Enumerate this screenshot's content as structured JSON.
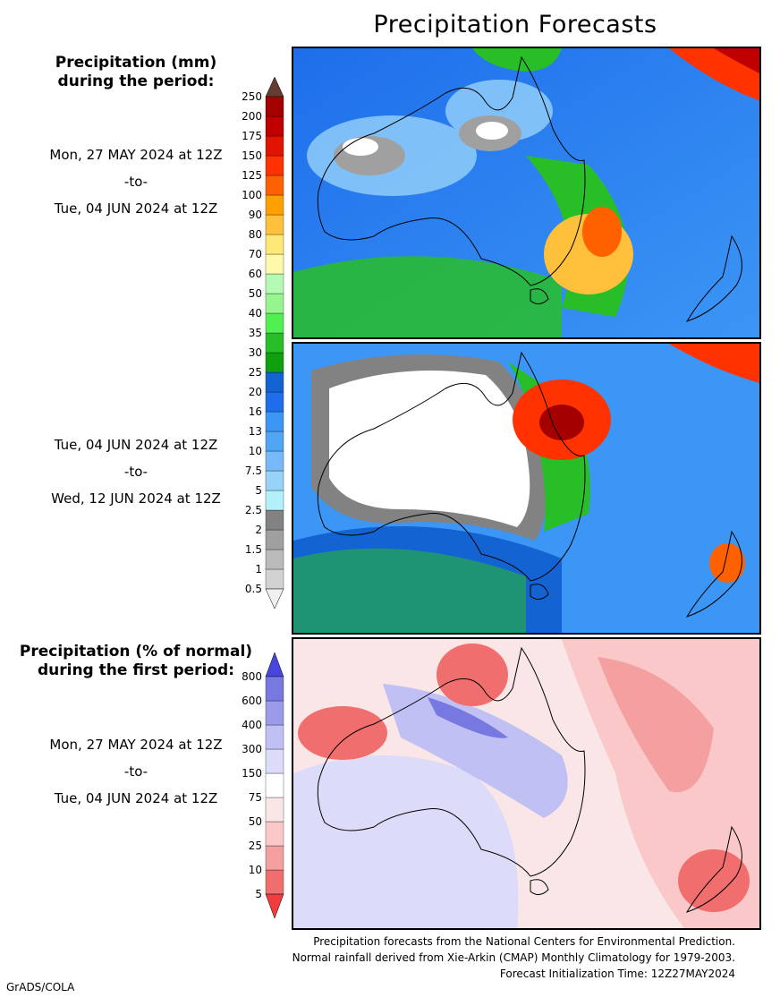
{
  "title": "Precipitation Forecasts",
  "legend_mm": {
    "heading_line1": "Precipitation (mm)",
    "heading_line2": "during the period:",
    "levels": [
      "0.5",
      "1",
      "1.5",
      "2",
      "2.5",
      "5",
      "7.5",
      "10",
      "13",
      "16",
      "20",
      "25",
      "30",
      "35",
      "40",
      "50",
      "60",
      "70",
      "80",
      "90",
      "100",
      "125",
      "150",
      "175",
      "200",
      "250"
    ],
    "colors": [
      "#f0f0f0",
      "#d2d2d2",
      "#bababa",
      "#a0a0a0",
      "#828282",
      "#b4f0fa",
      "#96d2fa",
      "#78b9fa",
      "#50a5f5",
      "#3c96f5",
      "#1e6eeb",
      "#1463d2",
      "#0fa00f",
      "#28be28",
      "#50f050",
      "#96f58c",
      "#b4fab4",
      "#fffaaa",
      "#ffe878",
      "#ffc03c",
      "#ffa000",
      "#ff6000",
      "#ff3200",
      "#e11400",
      "#c00000",
      "#a50000",
      "#643c32"
    ]
  },
  "period1": {
    "start": "Mon, 27 MAY 2024 at 12Z",
    "sep": "-to-",
    "end": "Tue, 04 JUN 2024 at 12Z"
  },
  "period2": {
    "start": "Tue, 04 JUN 2024 at 12Z",
    "sep": "-to-",
    "end": "Wed, 12 JUN 2024 at 12Z"
  },
  "legend_pct": {
    "heading_line1": "Precipitation (% of normal)",
    "heading_line2": "during the first period:",
    "levels": [
      "5",
      "10",
      "25",
      "50",
      "75",
      "150",
      "300",
      "400",
      "600",
      "800"
    ],
    "colors": [
      "#f03c3c",
      "#f06e6e",
      "#f5a0a0",
      "#fac8c8",
      "#fae6e6",
      "#ffffff",
      "#dcdcfa",
      "#c0c0f5",
      "#9b9bea",
      "#7878e1",
      "#4646dc"
    ]
  },
  "period3": {
    "start": "Mon, 27 MAY 2024 at 12Z",
    "sep": "-to-",
    "end": "Tue, 04 JUN 2024 at 12Z"
  },
  "footer": {
    "line1": "Precipitation forecasts from the National Centers for Environmental Prediction.",
    "line2": "Normal rainfall derived from Xie-Arkin (CMAP) Monthly Climatology for 1979-2003.",
    "line3": "Forecast Initialization Time: 12Z27MAY2024"
  },
  "credit": "GrADS/COLA"
}
